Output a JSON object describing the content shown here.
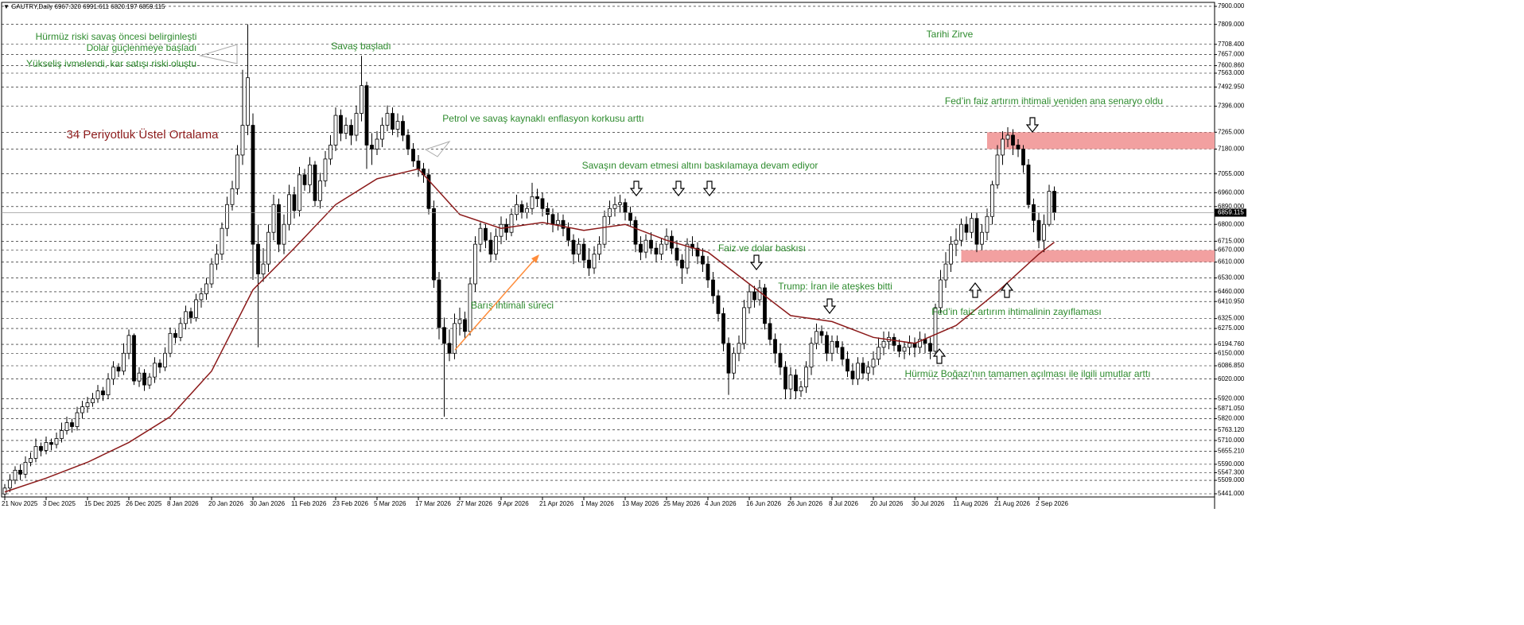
{
  "chart_data": {
    "type": "candlestick",
    "title": "▼ GAUTRY,Daily  6967.320 6991.611 6820.197 6859.115",
    "categories": [
      "21 Nov 2025",
      null,
      null,
      null,
      null,
      null,
      null,
      null,
      "3 Dec 2025",
      null,
      null,
      null,
      null,
      null,
      null,
      null,
      "15 Dec 2025",
      null,
      null,
      null,
      null,
      null,
      null,
      null,
      "26 Dec 2025",
      null,
      null,
      null,
      null,
      null,
      null,
      null,
      "8 Jan 2026",
      null,
      null,
      null,
      null,
      null,
      null,
      null,
      "20 Jan 2026",
      null,
      null,
      null,
      null,
      null,
      null,
      null,
      "30 Jan 2026",
      null,
      null,
      null,
      null,
      null,
      null,
      null,
      "11 Feb 2026",
      null,
      null,
      null,
      null,
      null,
      null,
      null,
      "23 Feb 2026",
      null,
      null,
      null,
      null,
      null,
      null,
      null,
      "5 Mar 2026",
      null,
      null,
      null,
      null,
      null,
      null,
      null,
      "17 Mar 2026",
      null,
      null,
      null,
      null,
      null,
      null,
      null,
      "27 Mar 2026",
      null,
      null,
      null,
      null,
      null,
      null,
      null,
      "9 Apr 2026",
      null,
      null,
      null,
      null,
      null,
      null,
      null,
      "21 Apr 2026",
      null,
      null,
      null,
      null,
      null,
      null,
      null,
      "1 May 2026",
      null,
      null,
      null,
      null,
      null,
      null,
      null,
      "13 May 2026",
      null,
      null,
      null,
      null,
      null,
      null,
      null,
      "25 May 2026",
      null,
      null,
      null,
      null,
      null,
      null,
      null,
      "4 Jun 2026",
      null,
      null,
      null,
      null,
      null,
      null,
      null,
      "16 Jun 2026",
      null,
      null,
      null,
      null,
      null,
      null,
      null,
      "26 Jun 2026",
      null,
      null,
      null,
      null,
      null,
      null,
      null,
      "8 Jul 2026",
      null,
      null,
      null,
      null,
      null,
      null,
      null,
      "20 Jul 2026",
      null,
      null,
      null,
      null,
      null,
      null,
      null,
      "30 Jul 2026",
      null,
      null,
      null,
      null,
      null,
      null,
      null,
      "11 Aug 2026",
      null,
      null,
      null,
      null,
      null,
      null,
      null,
      "21 Aug 2026",
      null,
      null,
      null,
      null,
      null,
      null,
      null,
      "2 Sep 2026",
      null,
      null,
      null
    ],
    "open": [
      5440,
      5470,
      5510,
      5560,
      5540,
      5600,
      5620,
      5680,
      5660,
      5700,
      5690,
      5720,
      5760,
      5800,
      5780,
      5850,
      5880,
      5900,
      5920,
      5960,
      5940,
      6020,
      6080,
      6060,
      6150,
      6240,
      6010,
      6050,
      5990,
      6030,
      6100,
      6080,
      6150,
      6250,
      6230,
      6300,
      6360,
      6330,
      6420,
      6450,
      6500,
      6600,
      6650,
      6780,
      6900,
      6980,
      7150,
      7300,
      7300,
      6700,
      6550,
      6600,
      6760,
      6900,
      6700,
      6800,
      6950,
      6870,
      7050,
      7000,
      7100,
      6920,
      7020,
      7130,
      7200,
      7350,
      7260,
      7300,
      7250,
      7360,
      7500,
      7200,
      7180,
      7230,
      7300,
      7360,
      7280,
      7320,
      7250,
      7180,
      7120,
      7080,
      7050,
      6880,
      6520,
      6280,
      6200,
      6150,
      6300,
      6320,
      6260,
      6500,
      6700,
      6780,
      6720,
      6650,
      6740,
      6800,
      6760,
      6850,
      6900,
      6860,
      6880,
      6940,
      6930,
      6880,
      6850,
      6800,
      6820,
      6780,
      6720,
      6650,
      6700,
      6620,
      6580,
      6650,
      6700,
      6840,
      6880,
      6900,
      6910,
      6860,
      6820,
      6700,
      6660,
      6720,
      6680,
      6650,
      6700,
      6740,
      6680,
      6620,
      6580,
      6700,
      6680,
      6640,
      6600,
      6520,
      6440,
      6350,
      6200,
      6050,
      6150,
      6200,
      6380,
      6460,
      6420,
      6480,
      6300,
      6220,
      6150,
      6080,
      5970,
      6040,
      5960,
      5980,
      6080,
      6200,
      6260,
      6240,
      6150,
      6210,
      6180,
      6120,
      6060,
      6020,
      6100,
      6050,
      6080,
      6120,
      6180,
      6210,
      6230,
      6190,
      6160,
      6180,
      6200,
      6180,
      6220,
      6200,
      6160,
      6380,
      6520,
      6600,
      6700,
      6720,
      6800,
      6760,
      6830,
      6700,
      6760,
      6840,
      7000,
      7150,
      7230,
      7250,
      7200,
      7180,
      7100,
      6900,
      6820,
      6720,
      6800,
      6967.32
    ],
    "high": [
      5490,
      5540,
      5580,
      5590,
      5630,
      5650,
      5720,
      5700,
      5730,
      5720,
      5750,
      5800,
      5830,
      5820,
      5880,
      5910,
      5930,
      5950,
      5990,
      5980,
      6050,
      6110,
      6100,
      6200,
      6270,
      6250,
      6080,
      6070,
      6050,
      6130,
      6120,
      6180,
      6280,
      6270,
      6330,
      6390,
      6380,
      6450,
      6480,
      6530,
      6630,
      6700,
      6810,
      6940,
      7020,
      7200,
      7580,
      7809,
      7360,
      6800,
      6680,
      6800,
      6950,
      6930,
      6850,
      7000,
      6990,
      7090,
      7080,
      7140,
      7120,
      7060,
      7170,
      7250,
      7390,
      7380,
      7340,
      7330,
      7400,
      7650,
      7520,
      7260,
      7270,
      7340,
      7400,
      7390,
      7360,
      7350,
      7280,
      7210,
      7150,
      7110,
      7080,
      6920,
      6560,
      6330,
      6270,
      6350,
      6380,
      6360,
      6530,
      6740,
      6810,
      6800,
      6760,
      6780,
      6840,
      6830,
      6880,
      6950,
      6920,
      6910,
      7010,
      6980,
      6960,
      6910,
      6880,
      6860,
      6850,
      6810,
      6750,
      6730,
      6730,
      6680,
      6690,
      6740,
      6870,
      6920,
      6940,
      6950,
      6930,
      6890,
      6840,
      6740,
      6750,
      6760,
      6710,
      6730,
      6780,
      6770,
      6720,
      6650,
      6730,
      6740,
      6710,
      6680,
      6640,
      6560,
      6470,
      6380,
      6230,
      6180,
      6240,
      6420,
      6500,
      6490,
      6520,
      6500,
      6330,
      6250,
      6200,
      6110,
      6080,
      6070,
      6010,
      6110,
      6230,
      6300,
      6290,
      6260,
      6240,
      6240,
      6210,
      6160,
      6100,
      6130,
      6130,
      6110,
      6160,
      6230,
      6260,
      6260,
      6250,
      6220,
      6210,
      6240,
      6230,
      6260,
      6250,
      6230,
      6400,
      6570,
      6660,
      6740,
      6780,
      6830,
      6840,
      6860,
      6860,
      6800,
      6880,
      7020,
      7200,
      7270,
      7290,
      7280,
      7230,
      7200,
      7130,
      6930,
      6860,
      6850,
      7000,
      6991.611
    ],
    "low": [
      5420,
      5450,
      5490,
      5510,
      5520,
      5580,
      5600,
      5630,
      5640,
      5660,
      5670,
      5700,
      5740,
      5750,
      5760,
      5820,
      5850,
      5880,
      5900,
      5910,
      5920,
      5990,
      6030,
      6040,
      6120,
      5990,
      5980,
      5960,
      5970,
      6000,
      6050,
      6060,
      6130,
      6200,
      6210,
      6270,
      6300,
      6310,
      6380,
      6420,
      6480,
      6570,
      6620,
      6740,
      6870,
      6950,
      7100,
      7250,
      6520,
      6180,
      6510,
      6560,
      6720,
      6660,
      6650,
      6770,
      6830,
      6840,
      6970,
      6960,
      6890,
      6880,
      6990,
      7100,
      7170,
      7220,
      7230,
      7200,
      7220,
      7320,
      7080,
      7100,
      7150,
      7190,
      7270,
      7250,
      7240,
      7220,
      7150,
      7090,
      7040,
      7010,
      6850,
      6480,
      6220,
      5830,
      6110,
      6120,
      6240,
      6220,
      6240,
      6460,
      6660,
      6680,
      6610,
      6620,
      6700,
      6720,
      6740,
      6820,
      6830,
      6830,
      6850,
      6890,
      6840,
      6800,
      6760,
      6770,
      6740,
      6690,
      6600,
      6610,
      6580,
      6540,
      6550,
      6620,
      6680,
      6800,
      6840,
      6860,
      6820,
      6790,
      6660,
      6620,
      6630,
      6650,
      6610,
      6620,
      6670,
      6650,
      6590,
      6500,
      6550,
      6640,
      6600,
      6560,
      6480,
      6400,
      6310,
      6160,
      5940,
      6020,
      6110,
      6170,
      6350,
      6380,
      6390,
      6270,
      6190,
      6100,
      6040,
      5920,
      5920,
      5920,
      5930,
      5950,
      6040,
      6170,
      6200,
      6110,
      6110,
      6150,
      6090,
      6030,
      5990,
      5990,
      6020,
      6010,
      6040,
      6090,
      6140,
      6170,
      6160,
      6130,
      6120,
      6140,
      6130,
      6150,
      6150,
      6120,
      6140,
      6350,
      6480,
      6560,
      6640,
      6690,
      6720,
      6730,
      6660,
      6670,
      6720,
      6800,
      6980,
      7100,
      7190,
      7150,
      7140,
      7060,
      6880,
      6760,
      6680,
      6660,
      6790,
      6820.197
    ],
    "close": [
      5470,
      5510,
      5560,
      5540,
      5600,
      5620,
      5680,
      5660,
      5700,
      5690,
      5720,
      5760,
      5800,
      5780,
      5850,
      5880,
      5900,
      5920,
      5960,
      5940,
      6020,
      6080,
      6060,
      6150,
      6240,
      6010,
      6050,
      5990,
      6030,
      6100,
      6080,
      6150,
      6250,
      6230,
      6300,
      6360,
      6330,
      6420,
      6450,
      6500,
      6600,
      6650,
      6780,
      6900,
      6980,
      7150,
      7300,
      7540,
      6700,
      6550,
      6600,
      6760,
      6900,
      6700,
      6800,
      6950,
      6870,
      7050,
      7000,
      7100,
      6920,
      7020,
      7130,
      7200,
      7350,
      7260,
      7300,
      7250,
      7360,
      7500,
      7200,
      7180,
      7230,
      7300,
      7360,
      7280,
      7320,
      7250,
      7180,
      7120,
      7080,
      7050,
      6880,
      6520,
      6280,
      6200,
      6150,
      6300,
      6320,
      6260,
      6500,
      6700,
      6780,
      6720,
      6650,
      6740,
      6800,
      6760,
      6850,
      6900,
      6860,
      6880,
      6940,
      6930,
      6880,
      6850,
      6800,
      6820,
      6780,
      6720,
      6650,
      6700,
      6620,
      6580,
      6650,
      6700,
      6840,
      6880,
      6900,
      6910,
      6860,
      6820,
      6700,
      6660,
      6720,
      6680,
      6650,
      6700,
      6740,
      6680,
      6620,
      6580,
      6700,
      6680,
      6640,
      6600,
      6520,
      6440,
      6350,
      6200,
      6050,
      6150,
      6200,
      6380,
      6460,
      6420,
      6480,
      6300,
      6220,
      6150,
      6080,
      5970,
      6040,
      5960,
      5980,
      6080,
      6200,
      6260,
      6240,
      6150,
      6210,
      6180,
      6120,
      6060,
      6020,
      6100,
      6050,
      6080,
      6120,
      6180,
      6210,
      6230,
      6190,
      6160,
      6180,
      6200,
      6180,
      6220,
      6200,
      6160,
      6380,
      6520,
      6600,
      6700,
      6720,
      6800,
      6760,
      6830,
      6700,
      6760,
      6840,
      7000,
      7150,
      7230,
      7250,
      7200,
      7180,
      7100,
      6900,
      6820,
      6720,
      6800,
      6967.32,
      6859.115
    ],
    "up_color": "#ffffff",
    "down_color": "#000000",
    "series": [
      {
        "name": "34 Periyotluk Üstel Ortalama",
        "color": "#8b1a1a",
        "x": [
          0,
          8,
          16,
          24,
          32,
          40,
          48,
          56,
          64,
          72,
          80,
          88,
          96,
          104,
          112,
          120,
          128,
          136,
          144,
          152,
          160,
          168,
          176,
          184,
          192,
          200,
          203
        ],
        "values": [
          5450,
          5520,
          5600,
          5700,
          5830,
          6060,
          6470,
          6680,
          6900,
          7030,
          7080,
          6850,
          6780,
          6810,
          6770,
          6800,
          6720,
          6660,
          6500,
          6340,
          6310,
          6230,
          6200,
          6290,
          6460,
          6650,
          6710
        ]
      }
    ],
    "zones": [
      {
        "x0": 190,
        "low": 7180,
        "high": 7265
      },
      {
        "x0": 185,
        "low": 6610,
        "high": 6670
      }
    ],
    "zone_color": "#f2a0a0",
    "annotation_color": "#2e8b2e",
    "annotations": [
      "Hürmüz riski savaş öncesi belirginleşti",
      "Dolar güçlenmeye başladı",
      "Yükseliş ivmelendi, kar satışı riski oluştu",
      "Savaş başladı",
      "Petrol ve savaş kaynaklı enflasyon korkusu arttı",
      "Savaşın devam etmesi altını baskılamaya devam ediyor",
      "Faiz ve dolar baskısı",
      "Trump: İran ile ateşkes bitti",
      "Barış ihtimali süreci",
      "Tarihi Zirve",
      "Fed’in faiz artırım ihtimali yeniden ana senaryo oldu",
      "Fed’in faiz artırım ihtimalinin zayıflaması",
      "Hürmüz Boğazı'nın tamamen açılması ile ilgili umutlar arttı"
    ],
    "last_price": {
      "value": 6859.115,
      "label": "6859.115"
    },
    "ylim": [
      5425,
      7920
    ],
    "yticks": [
      {
        "value": 7900,
        "label": "7900.000"
      },
      {
        "value": 7809,
        "label": "7809.000"
      },
      {
        "value": 7708.4,
        "label": "7708.400"
      },
      {
        "value": 7657,
        "label": "7657.000"
      },
      {
        "value": 7600.86,
        "label": "7600.860"
      },
      {
        "value": 7563,
        "label": "7563.000"
      },
      {
        "value": 7492.95,
        "label": "7492.950"
      },
      {
        "value": 7396,
        "label": "7396.000"
      },
      {
        "value": 7265,
        "label": "7265.000"
      },
      {
        "value": 7180,
        "label": "7180.000"
      },
      {
        "value": 7055,
        "label": "7055.000"
      },
      {
        "value": 6960,
        "label": "6960.000"
      },
      {
        "value": 6890,
        "label": "6890.000"
      },
      {
        "value": 6800,
        "label": "6800.000"
      },
      {
        "value": 6715,
        "label": "6715.000"
      },
      {
        "value": 6670,
        "label": "6670.000"
      },
      {
        "value": 6610,
        "label": "6610.000"
      },
      {
        "value": 6530,
        "label": "6530.000"
      },
      {
        "value": 6460,
        "label": "6460.000"
      },
      {
        "value": 6410.95,
        "label": "6410.950"
      },
      {
        "value": 6325,
        "label": "6325.000"
      },
      {
        "value": 6275,
        "label": "6275.000"
      },
      {
        "value": 6194.76,
        "label": "6194.760"
      },
      {
        "value": 6150,
        "label": "6150.000"
      },
      {
        "value": 6086.85,
        "label": "6086.850"
      },
      {
        "value": 6020,
        "label": "6020.000"
      },
      {
        "value": 5920,
        "label": "5920.000"
      },
      {
        "value": 5871.05,
        "label": "5871.050"
      },
      {
        "value": 5820,
        "label": "5820.000"
      },
      {
        "value": 5763.12,
        "label": "5763.120"
      },
      {
        "value": 5710,
        "label": "5710.000"
      },
      {
        "value": 5655.21,
        "label": "5655.210"
      },
      {
        "value": 5590,
        "label": "5590.000"
      },
      {
        "value": 5547.3,
        "label": "5547.300"
      },
      {
        "value": 5509,
        "label": "5509.000"
      },
      {
        "value": 5441,
        "label": "5441.000"
      }
    ],
    "grid": true
  }
}
